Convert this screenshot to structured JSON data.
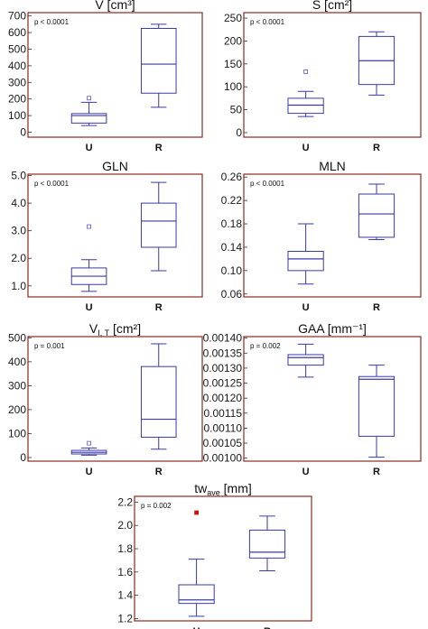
{
  "colors": {
    "frame": "#8b2a1e",
    "box": "#3a3aa8",
    "outlier": "#5a5ad0",
    "outlier_highlight": "#cc1111"
  },
  "chart_data": [
    {
      "type": "box",
      "title": "V [cm³]",
      "p_value": "p < 0.0001",
      "categories": [
        "U",
        "R"
      ],
      "ylim": [
        -30,
        720
      ],
      "yticks": [
        0,
        100,
        200,
        300,
        400,
        500,
        600,
        700
      ],
      "tick_labels": [
        "0",
        "100",
        "200",
        "300",
        "400",
        "500",
        "600",
        "700"
      ],
      "boxes": [
        {
          "category": "U",
          "min": 40,
          "q1": 55,
          "median": 100,
          "q3": 112,
          "max": 180,
          "outliers": [
            205
          ]
        },
        {
          "category": "R",
          "min": 150,
          "q1": 235,
          "median": 410,
          "q3": 625,
          "max": 650,
          "outliers": []
        }
      ]
    },
    {
      "type": "box",
      "title": "S [cm²]",
      "p_value": "p < 0.0001",
      "categories": [
        "U",
        "R"
      ],
      "ylim": [
        -10,
        262
      ],
      "yticks": [
        0,
        50,
        100,
        150,
        200,
        250
      ],
      "tick_labels": [
        "0",
        "50",
        "100",
        "150",
        "200",
        "250"
      ],
      "boxes": [
        {
          "category": "U",
          "min": 35,
          "q1": 42,
          "median": 60,
          "q3": 75,
          "max": 90,
          "outliers": [
            133
          ]
        },
        {
          "category": "R",
          "min": 82,
          "q1": 105,
          "median": 157,
          "q3": 210,
          "max": 220,
          "outliers": []
        }
      ]
    },
    {
      "type": "box",
      "title": "GLN",
      "p_value": "p < 0.0001",
      "categories": [
        "U",
        "R"
      ],
      "ylim": [
        0.6,
        5.05
      ],
      "yticks": [
        1.0,
        2.0,
        3.0,
        4.0,
        5.0
      ],
      "tick_labels": [
        "1.0",
        "2.0",
        "3.0",
        "4.0",
        "5.0"
      ],
      "boxes": [
        {
          "category": "U",
          "min": 0.8,
          "q1": 1.05,
          "median": 1.35,
          "q3": 1.65,
          "max": 1.95,
          "outliers": [
            3.15
          ]
        },
        {
          "category": "R",
          "min": 1.55,
          "q1": 2.4,
          "median": 3.35,
          "q3": 4.0,
          "max": 4.75,
          "outliers": []
        }
      ]
    },
    {
      "type": "box",
      "title": "MLN",
      "p_value": "p < 0.0001",
      "categories": [
        "U",
        "R"
      ],
      "ylim": [
        0.055,
        0.265
      ],
      "yticks": [
        0.06,
        0.1,
        0.14,
        0.18,
        0.22,
        0.26
      ],
      "tick_labels": [
        "0.06",
        "0.10",
        "0.14",
        "0.18",
        "0.22",
        "0.26"
      ],
      "boxes": [
        {
          "category": "U",
          "min": 0.077,
          "q1": 0.1,
          "median": 0.12,
          "q3": 0.133,
          "max": 0.18,
          "outliers": []
        },
        {
          "category": "R",
          "min": 0.153,
          "q1": 0.157,
          "median": 0.197,
          "q3": 0.231,
          "max": 0.248,
          "outliers": []
        }
      ]
    },
    {
      "type": "box",
      "title": "V",
      "title_sub": "I, T",
      "title_suffix": " [cm²]",
      "p_value": "p = 0.001",
      "categories": [
        "U",
        "R"
      ],
      "ylim": [
        -15,
        505
      ],
      "yticks": [
        0,
        100,
        200,
        300,
        400,
        500
      ],
      "tick_labels": [
        "0",
        "100",
        "200",
        "300",
        "400",
        "500"
      ],
      "boxes": [
        {
          "category": "U",
          "min": 10,
          "q1": 15,
          "median": 22,
          "q3": 30,
          "max": 40,
          "outliers": [
            60
          ]
        },
        {
          "category": "R",
          "min": 35,
          "q1": 85,
          "median": 160,
          "q3": 380,
          "max": 475,
          "outliers": []
        }
      ]
    },
    {
      "type": "box",
      "title": "GAA [mm⁻¹]",
      "p_value": "p = 0.002",
      "categories": [
        "U",
        "R"
      ],
      "ylim": [
        0.00099,
        0.001405
      ],
      "yticks": [
        0.001,
        0.00105,
        0.0011,
        0.00115,
        0.0012,
        0.00125,
        0.0013,
        0.00135,
        0.0014
      ],
      "tick_labels": [
        "0.00100",
        "0.00105",
        "0.00110",
        "0.00115",
        "0.00120",
        "0.00125",
        "0.00130",
        "0.00135",
        "0.00140"
      ],
      "boxes": [
        {
          "category": "U",
          "min": 0.00127,
          "q1": 0.00131,
          "median": 0.001335,
          "q3": 0.001345,
          "max": 0.00138,
          "outliers": []
        },
        {
          "category": "R",
          "min": 0.001003,
          "q1": 0.001073,
          "median": 0.001263,
          "q3": 0.001272,
          "max": 0.00131,
          "outliers": []
        }
      ]
    },
    {
      "type": "box",
      "title": "tw",
      "title_sub": "ave",
      "title_suffix": " [mm]",
      "p_value": "p = 0.002",
      "categories": [
        "U",
        "R"
      ],
      "ylim": [
        1.18,
        2.25
      ],
      "yticks": [
        1.2,
        1.4,
        1.6,
        1.8,
        2.0,
        2.2
      ],
      "tick_labels": [
        "1.2",
        "1.4",
        "1.6",
        "1.8",
        "2.0",
        "2.2"
      ],
      "boxes": [
        {
          "category": "U",
          "min": 1.22,
          "q1": 1.33,
          "median": 1.36,
          "q3": 1.49,
          "max": 1.71,
          "outliers": [
            2.11
          ]
        },
        {
          "category": "R",
          "min": 1.61,
          "q1": 1.72,
          "median": 1.77,
          "q3": 1.96,
          "max": 2.08,
          "outliers": []
        }
      ]
    }
  ]
}
